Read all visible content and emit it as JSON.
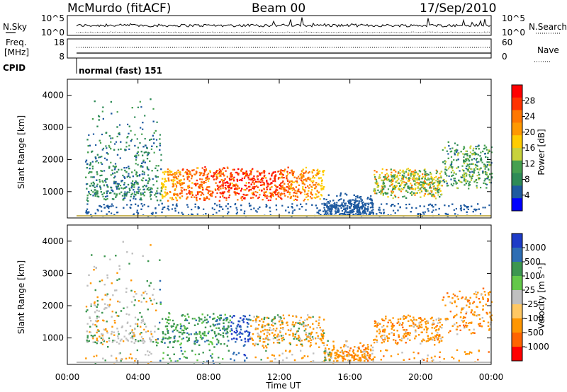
{
  "header": {
    "title": "McMurdo (fitACF)",
    "beam": "Beam 00",
    "date": "17/Sep/2010"
  },
  "top_panels": {
    "nsky_label": "N.Sky",
    "nsearch_label": "N.Search",
    "freq_label_1": "Freq.",
    "freq_label_2": "[MHz]",
    "nave_label": "Nave",
    "cpid_label": "CPID",
    "cpid_value": "normal (fast) 151",
    "nsky_ticks": [
      "10^5",
      "10^0"
    ],
    "nsearch_ticks": [
      "10^5",
      "10^0"
    ],
    "freq_ticks": [
      "18",
      "8"
    ],
    "nave_ticks": [
      "60",
      "0"
    ]
  },
  "chart_data": [
    {
      "type": "heatmap",
      "quantity": "Power",
      "xlabel": "",
      "ylabel": "Slant Range [km]",
      "ylim": [
        180,
        4500
      ],
      "yticks": [
        "4000",
        "3000",
        "2000",
        "1000"
      ],
      "colorbar_label": "Power [dB]",
      "colorbar_ticks": [
        "28",
        "24",
        "20",
        "16",
        "12",
        "8",
        "4"
      ],
      "colorbar_colors": [
        "#ff0000",
        "#ff3300",
        "#ff7700",
        "#ff9900",
        "#ffcc00",
        "#c8d23c",
        "#46a050",
        "#2e8b57",
        "#1e5aa0",
        "#0000ff"
      ]
    },
    {
      "type": "heatmap",
      "quantity": "Velocity",
      "xlabel": "Time UT",
      "ylabel": "Slant Range [km]",
      "ylim": [
        180,
        4500
      ],
      "yticks": [
        "4000",
        "3000",
        "2000",
        "1000"
      ],
      "xticks": [
        "00:00",
        "04:00",
        "08:00",
        "12:00",
        "16:00",
        "20:00",
        "00:00"
      ],
      "colorbar_label": "Velocity [m s⁻¹]",
      "colorbar_ticks": [
        "1000",
        "500",
        "100",
        "25",
        "-25",
        "-100",
        "-500",
        "-1000"
      ],
      "colorbar_colors": [
        "#1e3cc8",
        "#2e6eb4",
        "#3c9650",
        "#64c84a",
        "#c0c0c0",
        "#ffc864",
        "#ff9600",
        "#ff6400",
        "#ff0000"
      ]
    }
  ]
}
